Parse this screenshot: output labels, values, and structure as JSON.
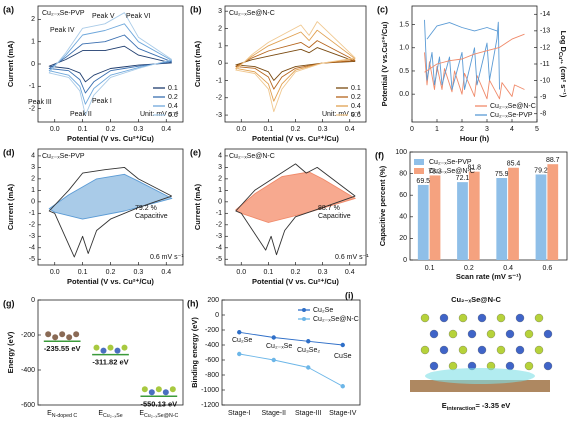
{
  "chart_data": [
    {
      "type": "line",
      "panel": "(a)",
      "title": "Cu₂₋ₓSe-PVP",
      "x_label": "Potential (V vs. Cu²⁺/Cu)",
      "y_label": "Current (mA)",
      "xlim": [
        -0.06,
        0.46
      ],
      "xticks": [
        {
          "value": 0,
          "label": "0.0"
        },
        0.1,
        0.2,
        0.3,
        0.4
      ],
      "ylim": [
        -2.6,
        2.6
      ],
      "yticks": [
        -2,
        -1,
        0,
        1,
        2
      ],
      "legend": "lower right",
      "annotations": [
        "Peak IV",
        "Peak V",
        "Peak VI",
        "Peak III",
        "Peak I",
        "Peak II",
        "Unit: mV s⁻¹"
      ],
      "series": [
        {
          "name": "0.1",
          "color": "#1f3d6e",
          "x": [
            0.42,
            0.3,
            0.2,
            0.14,
            0.11,
            0.09,
            0.05,
            -0.02,
            0.04,
            0.1,
            0.18,
            0.25,
            0.3,
            0.42
          ],
          "values": [
            0.05,
            -0.05,
            -0.2,
            -0.5,
            -0.8,
            -0.4,
            -0.2,
            -0.1,
            0.2,
            0.6,
            0.6,
            0.8,
            0.4,
            0.05
          ]
        },
        {
          "name": "0.2",
          "color": "#3a6fb0",
          "x": [
            0.42,
            0.3,
            0.2,
            0.14,
            0.11,
            0.09,
            0.05,
            -0.02,
            0.04,
            0.1,
            0.18,
            0.25,
            0.3,
            0.42
          ],
          "values": [
            0.1,
            -0.1,
            -0.3,
            -0.8,
            -1.3,
            -0.7,
            -0.3,
            -0.2,
            0.3,
            0.9,
            1.0,
            1.3,
            0.7,
            0.1
          ]
        },
        {
          "name": "0.4",
          "color": "#6fa8dc",
          "x": [
            0.42,
            0.3,
            0.2,
            0.14,
            0.11,
            0.09,
            0.05,
            -0.02,
            0.04,
            0.1,
            0.18,
            0.25,
            0.3,
            0.42
          ],
          "values": [
            0.16,
            -0.16,
            -0.5,
            -1.1,
            -1.8,
            -1.0,
            -0.5,
            -0.3,
            0.4,
            1.3,
            1.5,
            1.8,
            1.0,
            0.16
          ]
        },
        {
          "name": "0.6",
          "color": "#a9cbe8",
          "x": [
            0.42,
            0.3,
            0.2,
            0.14,
            0.11,
            0.09,
            0.05,
            -0.02,
            0.04,
            0.1,
            0.18,
            0.25,
            0.3,
            0.42
          ],
          "values": [
            0.2,
            -0.2,
            -0.6,
            -1.4,
            -2.3,
            -1.2,
            -0.6,
            -0.4,
            0.5,
            1.6,
            1.8,
            2.3,
            1.2,
            0.2
          ]
        }
      ]
    },
    {
      "type": "line",
      "panel": "(b)",
      "title": "Cu₂₋ₓSe@N-C",
      "x_label": "Potential (V vs. Cu²⁺/Cu)",
      "y_label": "Current (mA)",
      "xlim": [
        -0.06,
        0.46
      ],
      "xticks": [
        {
          "value": 0,
          "label": "0.0"
        },
        0.1,
        0.2,
        0.3,
        0.4
      ],
      "ylim": [
        -3.4,
        3.3
      ],
      "yticks": [
        -3,
        -2,
        -1,
        0,
        1,
        2,
        3
      ],
      "legend": "lower right",
      "annotations": [
        "Unit: mV s⁻¹"
      ],
      "series": [
        {
          "name": "0.1",
          "color": "#7a4a10",
          "x": [
            0.42,
            0.3,
            0.2,
            0.15,
            0.12,
            0.1,
            0.05,
            -0.02,
            0.04,
            0.1,
            0.22,
            0.25,
            0.28,
            0.42
          ],
          "values": [
            0.1,
            0.0,
            -0.2,
            -0.5,
            -1.0,
            -0.5,
            -0.2,
            -0.1,
            0.2,
            0.4,
            0.8,
            0.6,
            0.9,
            0.1
          ]
        },
        {
          "name": "0.2",
          "color": "#b5651d",
          "x": [
            0.42,
            0.3,
            0.2,
            0.15,
            0.12,
            0.1,
            0.05,
            -0.02,
            0.04,
            0.1,
            0.22,
            0.25,
            0.28,
            0.42
          ],
          "values": [
            0.15,
            0.0,
            -0.3,
            -0.8,
            -1.5,
            -0.8,
            -0.3,
            -0.2,
            0.3,
            0.7,
            1.2,
            0.9,
            1.3,
            0.15
          ]
        },
        {
          "name": "0.4",
          "color": "#e0a050",
          "x": [
            0.42,
            0.3,
            0.2,
            0.15,
            0.12,
            0.1,
            0.05,
            -0.02,
            0.04,
            0.1,
            0.22,
            0.25,
            0.28,
            0.42
          ],
          "values": [
            0.25,
            0.0,
            -0.4,
            -1.2,
            -2.2,
            -1.2,
            -0.5,
            -0.3,
            0.4,
            1.0,
            1.8,
            1.3,
            1.9,
            0.25
          ]
        },
        {
          "name": "0.6",
          "color": "#f0c890",
          "x": [
            0.42,
            0.3,
            0.2,
            0.15,
            0.12,
            0.1,
            0.05,
            -0.02,
            0.04,
            0.1,
            0.22,
            0.25,
            0.28,
            0.42
          ],
          "values": [
            0.3,
            0.0,
            -0.5,
            -1.5,
            -2.8,
            -1.5,
            -0.6,
            -0.4,
            0.5,
            1.2,
            2.2,
            1.6,
            2.4,
            0.3
          ]
        }
      ]
    },
    {
      "type": "line",
      "panel": "(c)",
      "x_label": "Hour (h)",
      "y_label": "Potential (V vs.Cu²⁺/Cu)",
      "y2_label": {
        "main": "Log D",
        "sub": "Cu²⁺",
        "rest": " (cm² s⁻¹)"
      },
      "xlim": [
        0,
        5
      ],
      "xticks": [
        0,
        1,
        2,
        3,
        4,
        5
      ],
      "ylim": [
        -0.6,
        1.9
      ],
      "yticks": [
        {
          "value": 0,
          "label": "0.0"
        },
        0.5,
        {
          "value": 1,
          "label": "1.0"
        },
        1.5
      ],
      "y2lim": [
        -7.5,
        -14.5
      ],
      "y2ticks": [
        -8,
        -9,
        -10,
        -11,
        -12,
        -13,
        -14
      ],
      "legend": "lower right",
      "series": [
        {
          "name": "Cu₂₋ₓSe@N-C",
          "color": "#f08a6a",
          "x": [
            0.5,
            0.6,
            0.7,
            0.9,
            1.0,
            1.2,
            1.3,
            1.6,
            1.7,
            2.0,
            2.1,
            2.5,
            2.6,
            3.0,
            3.1,
            3.5,
            3.6,
            4.0,
            4.1,
            4.5
          ],
          "values": [
            0.9,
            0.2,
            0.7,
            0.1,
            0.6,
            0.1,
            0.55,
            0.05,
            0.5,
            0.0,
            0.45,
            -0.05,
            0.4,
            -0.1,
            0.3,
            -0.1,
            0.25,
            -0.05,
            0.2,
            0.1
          ]
        },
        {
          "name": "Cu₂₋ₓSe-PVP",
          "color": "#5b9bd5",
          "x": [
            0.5,
            0.6,
            0.8,
            0.9,
            1.1,
            1.2,
            1.5,
            1.6,
            2.0,
            2.1,
            2.5,
            2.6,
            3.0,
            3.1,
            3.4,
            3.45,
            3.5
          ],
          "values": [
            1.6,
            0.3,
            0.9,
            0.2,
            0.8,
            0.2,
            0.8,
            0.1,
            0.9,
            0.1,
            1.0,
            0.2,
            1.1,
            0.3,
            1.2,
            1.55,
            0.1
          ]
        },
        {
          "color": "#f08a6a",
          "axis": "y2",
          "x": [
            0.5,
            1,
            1.5,
            2,
            2.5,
            3,
            3.5,
            4,
            4.5
          ],
          "values": [
            -10.5,
            -11,
            -11.2,
            -11.3,
            -11.6,
            -11.8,
            -12,
            -12.5,
            -12.8
          ]
        },
        {
          "color": "#5b9bd5",
          "axis": "y2",
          "x": [
            0.6,
            1,
            1.5,
            2,
            2.5,
            3,
            3.4
          ],
          "values": [
            -12.5,
            -13.3,
            -13.5,
            -13.2,
            -13.0,
            -13.2,
            -13.0
          ]
        }
      ]
    },
    {
      "type": "line",
      "panel": "(d)",
      "title": "Cu₂₋ₓSe-PVP",
      "x_label": "Potential (V vs. Cu²⁺/Cu)",
      "y_label": "Current (mA)",
      "xlim": [
        -0.06,
        0.46
      ],
      "xticks": [
        {
          "value": 0,
          "label": "0.0"
        },
        0.1,
        0.2,
        0.3,
        0.4
      ],
      "ylim": [
        -5.5,
        4.6
      ],
      "yticks": [
        -5,
        -4,
        -3,
        -2,
        -1,
        0,
        1,
        2,
        3,
        4
      ],
      "annotations": [
        "79.2 %",
        "Capacitive",
        "0.6 mV s⁻¹"
      ],
      "annotation_color": "#5b9bd5",
      "series": [
        {
          "color": "#5b9bd5",
          "fill": "#a9cbe8",
          "x": [
            0.42,
            0.25,
            0.1,
            0.0,
            -0.02,
            0.05,
            0.15,
            0.25,
            0.3,
            0.42
          ],
          "values": [
            0.3,
            -0.8,
            -1.5,
            -0.9,
            -0.6,
            0.6,
            2.0,
            2.4,
            1.8,
            0.3
          ]
        },
        {
          "color": "#333333",
          "x": [
            0.42,
            0.3,
            0.2,
            0.15,
            0.12,
            0.1,
            0.07,
            0.0,
            -0.02,
            0.05,
            0.1,
            0.18,
            0.25,
            0.3,
            0.42
          ],
          "values": [
            0.5,
            -0.5,
            -1.5,
            -2.5,
            -4.5,
            -3.0,
            -4.8,
            -1.0,
            -0.8,
            1.0,
            2.5,
            2.8,
            3.0,
            2.0,
            0.5
          ]
        }
      ]
    },
    {
      "type": "line",
      "panel": "(e)",
      "title": "Cu₂₋ₓSe@N-C",
      "x_label": "Potential (V vs. Cu²⁺/Cu)",
      "y_label": "Current (mA)",
      "xlim": [
        -0.06,
        0.46
      ],
      "xticks": [
        {
          "value": 0,
          "label": "0.0"
        },
        0.1,
        0.2,
        0.3,
        0.4
      ],
      "ylim": [
        -5.5,
        4.6
      ],
      "yticks": [
        -5,
        -4,
        -3,
        -2,
        -1,
        0,
        1,
        2,
        3,
        4
      ],
      "annotations": [
        "88.7 %",
        "Capacitive",
        "0.6 mV s⁻¹"
      ],
      "annotation_color": "#f08a6a",
      "series": [
        {
          "color": "#f08a6a",
          "fill": "#f7a98f",
          "x": [
            0.42,
            0.25,
            0.1,
            0.0,
            -0.02,
            0.05,
            0.15,
            0.25,
            0.3,
            0.42
          ],
          "values": [
            0.3,
            -0.9,
            -1.8,
            -1.0,
            -0.7,
            0.7,
            2.2,
            2.6,
            2.0,
            0.3
          ]
        },
        {
          "color": "#333333",
          "x": [
            0.42,
            0.3,
            0.2,
            0.16,
            0.13,
            0.11,
            0.09,
            0.0,
            -0.02,
            0.05,
            0.2,
            0.24,
            0.28,
            0.42
          ],
          "values": [
            0.5,
            -0.5,
            -1.3,
            -2.5,
            -4.6,
            -3.0,
            -4.2,
            -1.0,
            -0.8,
            1.0,
            3.3,
            2.5,
            3.0,
            0.5
          ]
        }
      ]
    },
    {
      "type": "bar",
      "panel": "(f)",
      "x_label": "Scan rate (mV s⁻¹)",
      "y_label": "Capacitive percent (%)",
      "categories": [
        "0.1",
        "0.2",
        "0.4",
        "0.6"
      ],
      "ylim": [
        0,
        100
      ],
      "yticks": [
        0,
        20,
        40,
        60,
        80,
        100
      ],
      "legend": "upper left",
      "series": [
        {
          "name": "Cu₂₋ₓSe-PVP",
          "color": "#8fbfe8",
          "values": [
            69.5,
            72.1,
            75.9,
            79.2
          ]
        },
        {
          "name": "Cu₂₋ₓSe@N-C",
          "color": "#f5a27f",
          "values": [
            78.3,
            81.8,
            85.4,
            88.7
          ]
        }
      ]
    },
    {
      "type": "level",
      "panel": "(g)",
      "y_label": "Energy (eV)",
      "categories": [
        {
          "main": "E",
          "sub": "N-doped C"
        },
        {
          "main": "E",
          "sub": "Cu₂₋ₓSe"
        },
        {
          "main": "E",
          "sub": "Cu₂₋ₓSe@N-C"
        }
      ],
      "values": [
        -235.55,
        -311.82,
        -550.13
      ],
      "value_labels": [
        "-235.55 eV",
        "-311.82 eV",
        "-550.13 eV"
      ],
      "ylim": [
        -600,
        0
      ],
      "yticks": [
        -600,
        -400,
        -200,
        0
      ],
      "color": "#3a9a3a"
    },
    {
      "type": "line",
      "panel": "(h)",
      "y_label": "Binding energy (eV)",
      "categories": [
        "Stage-I",
        "Stage-II",
        "Stage-III",
        "Stage-IV"
      ],
      "ylim": [
        -1200,
        200
      ],
      "yticks": [
        -1200,
        -1000,
        -800,
        -600,
        -400,
        -200,
        0,
        200
      ],
      "legend": "upper right",
      "annotations": [
        "Cu₂Se",
        "Cu₂₋ₓSe",
        "Cu₃Se₂",
        "CuSe"
      ],
      "series": [
        {
          "name": "Cu₂Se",
          "color": "#2f6fc8",
          "marker": true,
          "values": [
            -230,
            -300,
            -350,
            -400
          ]
        },
        {
          "name": "Cu₂₋ₓSe@N-C",
          "color": "#6cb6e8",
          "marker": true,
          "values": [
            -520,
            -600,
            -700,
            -950
          ]
        }
      ]
    },
    {
      "type": "image",
      "panel": "(i)",
      "title": "Cu₂₋ₓSe@N-C",
      "annotations": [
        {
          "main": "E",
          "sub": "interaction",
          "rest": "= -3.35 eV"
        }
      ]
    }
  ]
}
